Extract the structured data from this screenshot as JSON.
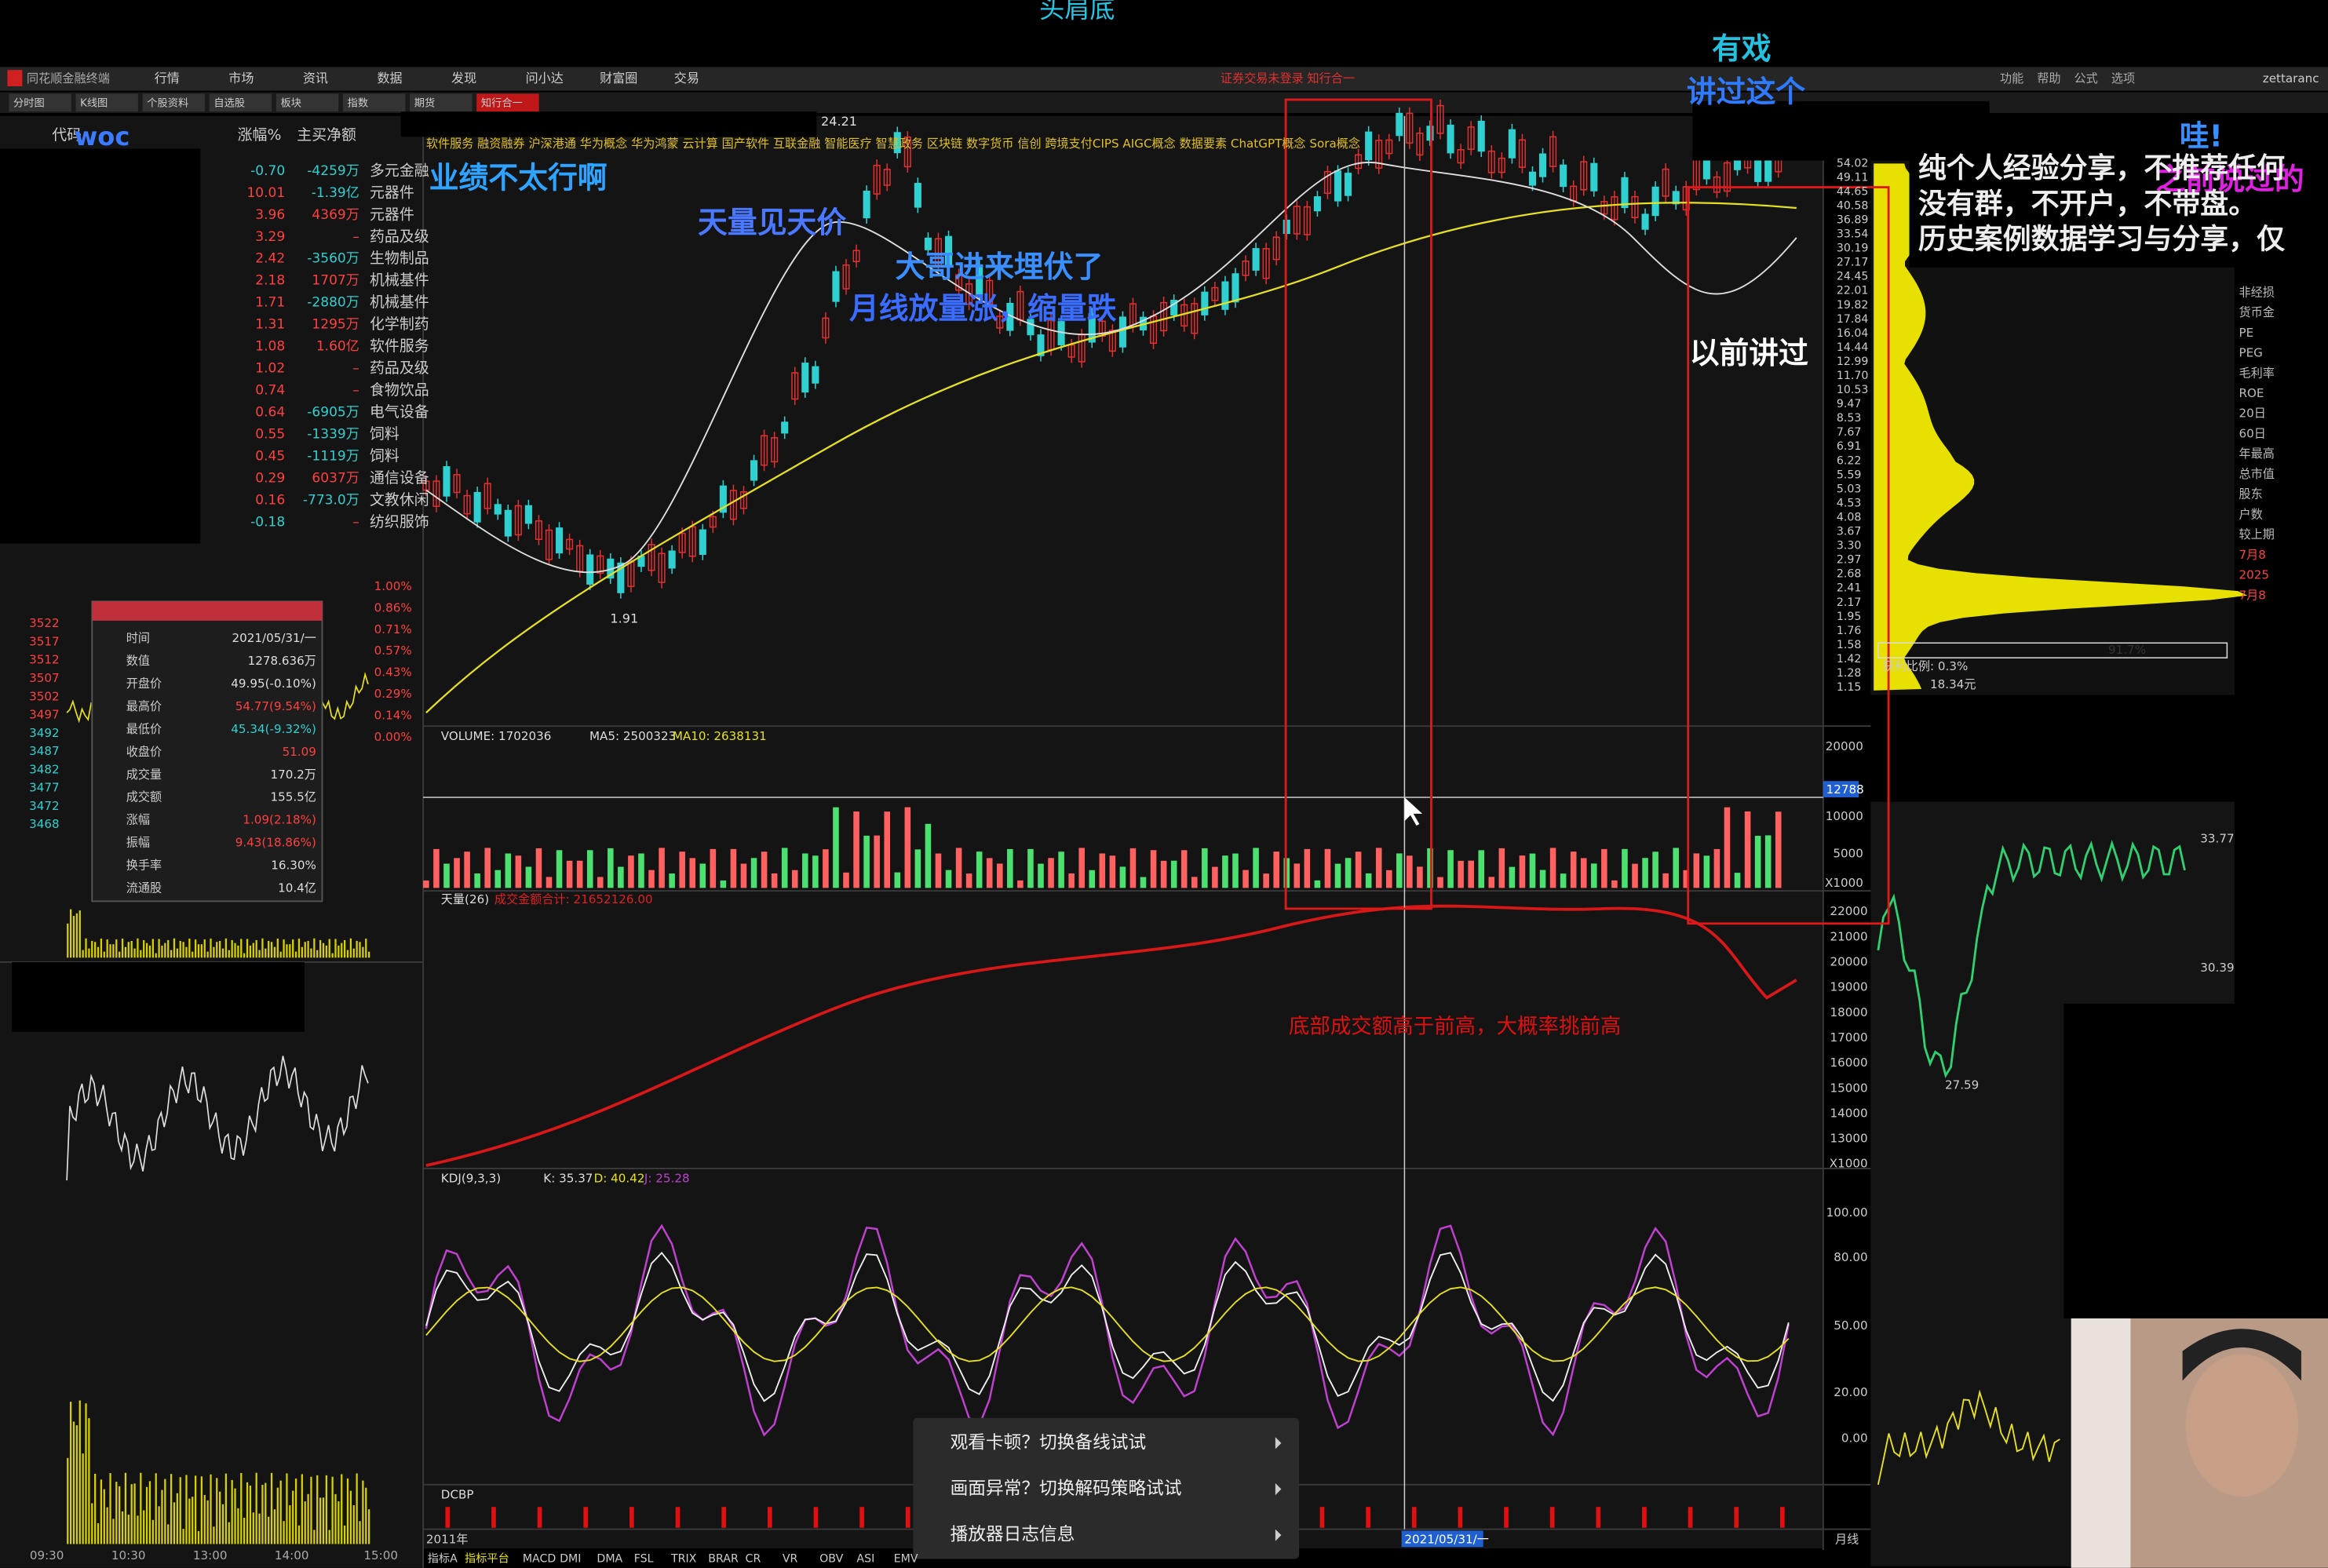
{
  "video_title": "头肩底",
  "menu": {
    "app": "同花顺金融终端",
    "items": [
      "行情",
      "市场",
      "资讯",
      "数据",
      "发现",
      "问小达",
      "财富圈",
      "交易"
    ],
    "notice": "证券交易未登录  知行合一",
    "right": [
      "功能",
      "帮助",
      "公式",
      "选项"
    ],
    "user": "zettaranc"
  },
  "tabs": [
    "分时图",
    "K线图",
    "个股资料",
    "自选股",
    "板块",
    "指数",
    "期货",
    "知行合一"
  ],
  "stock_list": {
    "headers": [
      "代码",
      "涨幅%",
      "主买净额"
    ],
    "rows": [
      [
        "-0.70",
        "-4259万",
        "多元金融"
      ],
      [
        "10.01",
        "-1.39亿",
        "元器件"
      ],
      [
        "3.96",
        "4369万",
        "元器件"
      ],
      [
        "3.29",
        "–",
        "药品及级"
      ],
      [
        "2.42",
        "-3560万",
        "生物制品"
      ],
      [
        "2.18",
        "1707万",
        "机械基件"
      ],
      [
        "1.71",
        "-2880万",
        "机械基件"
      ],
      [
        "1.31",
        "1295万",
        "化学制药"
      ],
      [
        "1.08",
        "1.60亿",
        "软件服务"
      ],
      [
        "1.02",
        "–",
        "药品及级"
      ],
      [
        "0.74",
        "–",
        "食物饮品"
      ],
      [
        "0.64",
        "-6905万",
        "电气设备"
      ],
      [
        "0.55",
        "-1339万",
        "饲料"
      ],
      [
        "0.45",
        "-1119万",
        "饲料"
      ],
      [
        "0.29",
        "6037万",
        "通信设备"
      ],
      [
        "0.16",
        "-773.0万",
        "文教休闲"
      ],
      [
        "-0.18",
        "–",
        "纺织服饰"
      ]
    ]
  },
  "info_panel": {
    "rows": [
      [
        "时间",
        "2021/05/31/一"
      ],
      [
        "数值",
        "1278.636万"
      ],
      [
        "开盘价",
        "49.95(-0.10%)"
      ],
      [
        "最高价",
        "54.77(9.54%)"
      ],
      [
        "最低价",
        "45.34(-9.32%)"
      ],
      [
        "收盘价",
        "51.09"
      ],
      [
        "成交量",
        "170.2万"
      ],
      [
        "成交额",
        "155.5亿"
      ],
      [
        "涨幅",
        "1.09(2.18%)"
      ],
      [
        "振幅",
        "9.43(18.86%)"
      ],
      [
        "换手率",
        "16.30%"
      ],
      [
        "流通股",
        "10.4亿"
      ]
    ]
  },
  "intraday": {
    "price_axis": [
      "3522",
      "3517",
      "3512",
      "3507",
      "3502",
      "3497",
      "3492",
      "3487",
      "3482",
      "3477",
      "3472",
      "3468"
    ],
    "pct_axis": [
      "1.00%",
      "0.86%",
      "0.71%",
      "0.57%",
      "0.43%",
      "0.29%",
      "0.14%",
      "0.00%"
    ],
    "times": [
      "09:30",
      "10:30",
      "13:00",
      "14:00",
      "15:00"
    ]
  },
  "main_chart": {
    "concepts": "软件服务 融资融券 沪深港通 华为概念 华为鸿蒙 云计算 国产软件 互联金融 智能医疗 智慧政务 区块链 数字货币 信创 跨境支付CIPS AIGC概念 数据要素 ChatGPT概念 Sora概念",
    "high_label": "24.21",
    "low_label": "1.91",
    "price_axis": [
      "54.02",
      "49.11",
      "44.65",
      "40.58",
      "36.89",
      "33.54",
      "30.19",
      "27.17",
      "24.45",
      "22.01",
      "19.82",
      "17.84",
      "16.04",
      "14.44",
      "12.99",
      "11.70",
      "10.53",
      "9.47",
      "8.53",
      "7.67",
      "6.91",
      "6.22",
      "5.59",
      "5.03",
      "4.53",
      "4.08",
      "3.67",
      "3.30",
      "2.97",
      "2.68",
      "2.41",
      "2.17",
      "1.95",
      "1.76",
      "1.58",
      "1.42",
      "1.28",
      "1.15"
    ]
  },
  "volume_panel": {
    "label": "VOLUME: 1702036",
    "ma5": "MA5: 2500323",
    "ma10": "MA10: 2638131",
    "axis": [
      "20000",
      "10000",
      "5000",
      "X1000"
    ],
    "cursor": "12788"
  },
  "amount_panel": {
    "label": "天量(26)",
    "sub": "成交金额合计: 21652126.00",
    "axis": [
      "22000",
      "21000",
      "20000",
      "19000",
      "18000",
      "17000",
      "16000",
      "15000",
      "14000",
      "13000",
      "X1000"
    ]
  },
  "kdj_panel": {
    "label": "KDJ(9,3,3)",
    "k": "K: 35.37",
    "d": "D: 40.42",
    "j": "J: 25.28",
    "axis": [
      "100.00",
      "80.00",
      "50.00",
      "20.00",
      "0.00"
    ]
  },
  "dcbp_label": "DCBP",
  "time_axis": {
    "start": "2011年",
    "cursor": "2021/05/31/一",
    "period": "月线"
  },
  "bottom_tabs": [
    "指标A",
    "指标平台",
    "MACD",
    "DMI",
    "DMA",
    "FSL",
    "TRIX",
    "BRAR",
    "CR",
    "VR",
    "OBV",
    "ASI",
    "EMV"
  ],
  "annotations": [
    "有戏",
    "讲过这个",
    "业绩不太行啊",
    "天量见天价",
    "大哥进来埋伏了",
    "月线放量涨，缩量跌",
    "以前讲过",
    "哇!",
    "之前说过的",
    "woc",
    "底部成交额高于前高，大概率挑前高"
  ],
  "side_text": [
    "纯个人经验分享，不推荐任何",
    "没有群，不开户，不带盘。",
    "历史案例数据学习与分享，仅"
  ],
  "right_panel": {
    "labels": [
      "非经损",
      "货币金",
      "PE",
      "PEG",
      "毛利率",
      "ROE",
      "20日",
      "60日",
      "年最高",
      "总市值",
      "股东",
      "户数",
      "较上期",
      "7月8",
      "2025",
      "7月8"
    ],
    "chip_pct": "91.7%",
    "chip_profit": "获利比例: 0.3%",
    "chip_cost": "18.34元",
    "mini_axis": [
      "33.77",
      "30.39"
    ],
    "mini_low": "27.59"
  },
  "context_menu": [
    "观看卡顿？切换备线试试",
    "画面异常？切换解码策略试试",
    "播放器日志信息"
  ]
}
